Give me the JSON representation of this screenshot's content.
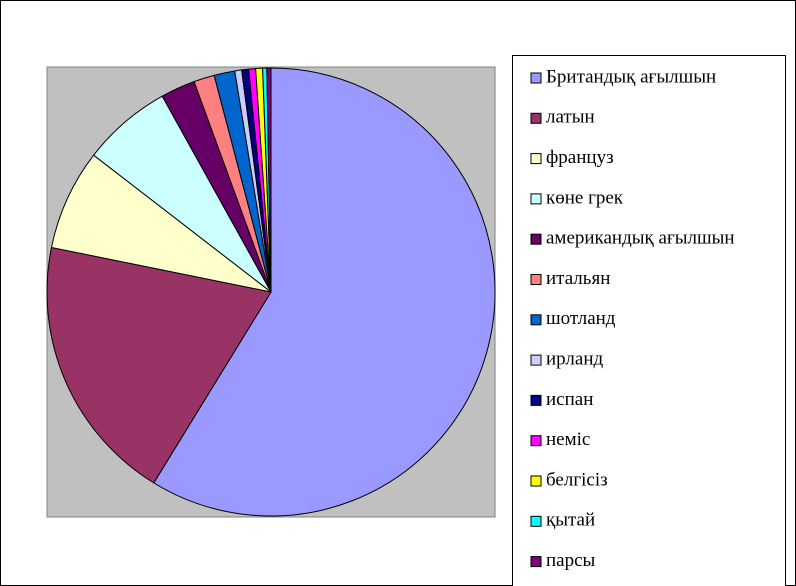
{
  "chart_data": {
    "type": "pie",
    "categories": [
      "Британдық ағылшын",
      "латын",
      "француз",
      "көне грек",
      "американдық ағылшын",
      "итальян",
      "шотланд",
      "ирланд",
      "испан",
      "неміс",
      "белгісіз",
      "қытай",
      "парсы"
    ],
    "values": [
      59,
      19.5,
      7.3,
      6.5,
      2.5,
      1.5,
      1.5,
      0.5,
      0.5,
      0.5,
      0.5,
      0.3,
      0.3
    ],
    "colors": [
      "#9999ff",
      "#993366",
      "#ffffcc",
      "#ccffff",
      "#660066",
      "#ff8080",
      "#0066cc",
      "#ccccff",
      "#000080",
      "#ff00ff",
      "#ffff00",
      "#00ffff",
      "#800080"
    ],
    "legend": "right"
  }
}
